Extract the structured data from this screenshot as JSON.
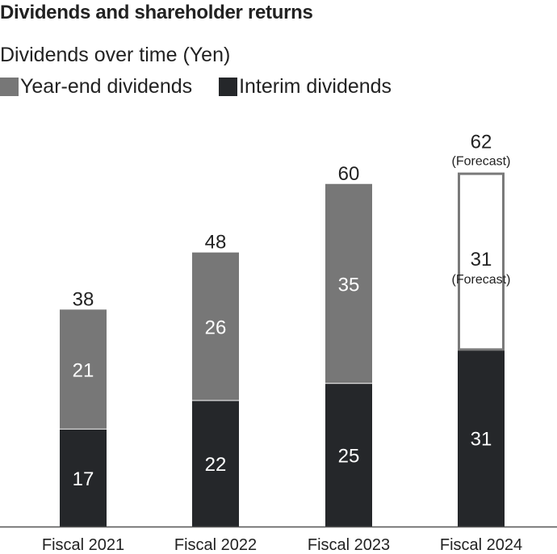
{
  "header": {
    "title": "Dividends and shareholder returns",
    "subtitle": "Dividends over time (Yen)"
  },
  "colors": {
    "year_end": "#777777",
    "interim": "#25272a",
    "forecast_fill": "#ffffff",
    "forecast_border": "#7a7a7a",
    "axis": "#555555",
    "text_dark": "#222222",
    "text_light": "#ffffff"
  },
  "chart_data": {
    "type": "bar",
    "stacked": true,
    "categories": [
      "Fiscal 2021",
      "Fiscal 2022",
      "Fiscal 2023",
      "Fiscal 2024"
    ],
    "series": [
      {
        "name": "Interim dividends",
        "values": [
          17,
          22,
          25,
          31
        ],
        "color": "#25272a"
      },
      {
        "name": "Year-end dividends",
        "values": [
          21,
          26,
          35,
          31
        ],
        "color": "#777777",
        "forecast": [
          false,
          false,
          false,
          true
        ]
      }
    ],
    "totals": [
      38,
      48,
      60,
      62
    ],
    "forecast_label": "(Forecast)",
    "total_forecast": [
      false,
      false,
      false,
      true
    ],
    "legend": [
      {
        "label": "Year-end dividends",
        "color": "#777777"
      },
      {
        "label": "Interim dividends",
        "color": "#25272a"
      }
    ],
    "legend_position": "top-left",
    "ylim": [
      0,
      71
    ],
    "grid": false
  }
}
